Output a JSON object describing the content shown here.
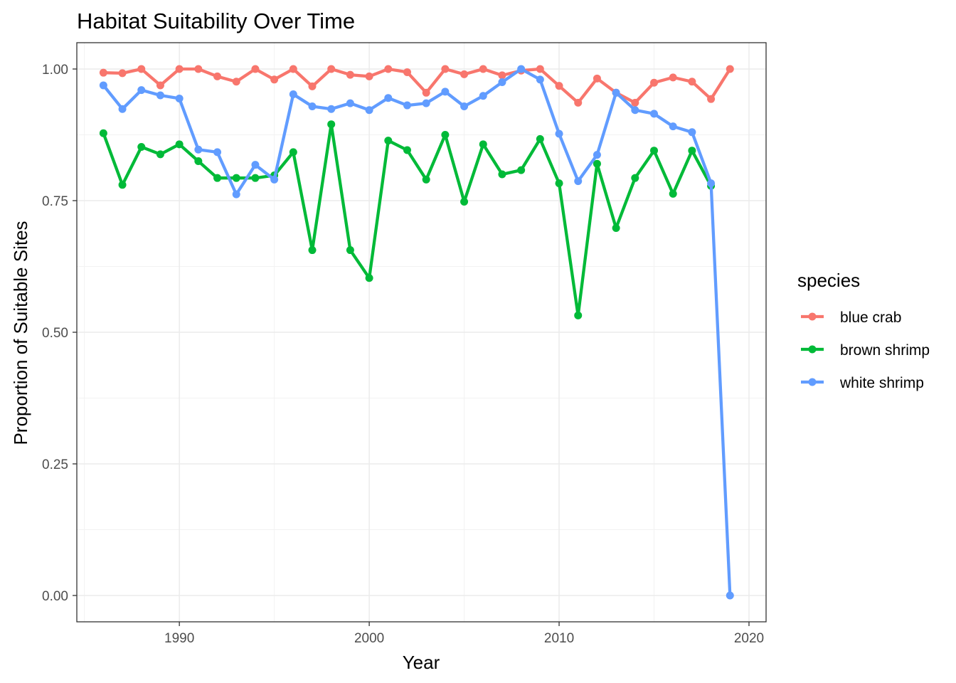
{
  "chart_data": {
    "type": "line",
    "title": "Habitat Suitability Over Time",
    "xlabel": "Year",
    "ylabel": "Proportion of Suitable Sites",
    "xlim": [
      1984.6,
      2020.9
    ],
    "ylim": [
      -0.05,
      1.05
    ],
    "x_ticks": [
      1990,
      2000,
      2010,
      2020
    ],
    "x_tick_labels": [
      "1990",
      "2000",
      "2010",
      "2020"
    ],
    "y_ticks": [
      0,
      0.25,
      0.5,
      0.75,
      1.0
    ],
    "y_tick_labels": [
      "0.00",
      "0.25",
      "0.50",
      "0.75",
      "1.00"
    ],
    "grid": true,
    "legend": {
      "title": "species",
      "position": "right"
    },
    "x": [
      1986,
      1987,
      1988,
      1989,
      1990,
      1991,
      1992,
      1993,
      1994,
      1995,
      1996,
      1997,
      1998,
      1999,
      2000,
      2001,
      2002,
      2003,
      2004,
      2005,
      2006,
      2007,
      2008,
      2009,
      2010,
      2011,
      2012,
      2013,
      2014,
      2015,
      2016,
      2017,
      2018,
      2019
    ],
    "series": [
      {
        "name": "blue crab",
        "color": "#F8766D",
        "x": [
          1986,
          1987,
          1988,
          1989,
          1990,
          1991,
          1992,
          1993,
          1994,
          1995,
          1996,
          1997,
          1998,
          1999,
          2000,
          2001,
          2002,
          2003,
          2004,
          2005,
          2006,
          2007,
          2008,
          2009,
          2010,
          2011,
          2012,
          2013,
          2014,
          2015,
          2016,
          2017,
          2018,
          2019
        ],
        "values": [
          0.993,
          0.992,
          1.0,
          0.969,
          1.0,
          1.0,
          0.986,
          0.976,
          1.0,
          0.98,
          1.0,
          0.967,
          1.0,
          0.989,
          0.986,
          1.0,
          0.994,
          0.955,
          1.0,
          0.99,
          1.0,
          0.988,
          0.997,
          1.0,
          0.968,
          0.936,
          0.982,
          0.955,
          0.936,
          0.974,
          0.984,
          0.976,
          0.943,
          1.0
        ]
      },
      {
        "name": "brown shrimp",
        "color": "#00BA38",
        "x": [
          1986,
          1987,
          1988,
          1989,
          1990,
          1991,
          1992,
          1993,
          1994,
          1995,
          1996,
          1997,
          1998,
          1999,
          2000,
          2001,
          2002,
          2003,
          2004,
          2005,
          2006,
          2007,
          2008,
          2009,
          2010,
          2011,
          2012,
          2013,
          2014,
          2015,
          2016,
          2017,
          2018
        ],
        "values": [
          0.878,
          0.78,
          0.852,
          0.838,
          0.857,
          0.825,
          0.793,
          0.793,
          0.793,
          0.798,
          0.842,
          0.656,
          0.895,
          0.656,
          0.603,
          0.864,
          0.846,
          0.79,
          0.875,
          0.748,
          0.857,
          0.8,
          0.808,
          0.867,
          0.783,
          0.532,
          0.82,
          0.698,
          0.793,
          0.845,
          0.763,
          0.845,
          0.778
        ]
      },
      {
        "name": "white shrimp",
        "color": "#619CFF",
        "x": [
          1986,
          1987,
          1988,
          1989,
          1990,
          1991,
          1992,
          1993,
          1994,
          1995,
          1996,
          1997,
          1998,
          1999,
          2000,
          2001,
          2002,
          2003,
          2004,
          2005,
          2006,
          2007,
          2008,
          2009,
          2010,
          2011,
          2012,
          2013,
          2014,
          2015,
          2016,
          2017,
          2018,
          2019
        ],
        "values": [
          0.969,
          0.924,
          0.96,
          0.95,
          0.944,
          0.847,
          0.842,
          0.762,
          0.818,
          0.79,
          0.952,
          0.929,
          0.924,
          0.935,
          0.922,
          0.945,
          0.931,
          0.935,
          0.957,
          0.929,
          0.949,
          0.975,
          1.0,
          0.98,
          0.877,
          0.787,
          0.837,
          0.955,
          0.922,
          0.915,
          0.891,
          0.88,
          0.783,
          0.0
        ]
      }
    ]
  }
}
